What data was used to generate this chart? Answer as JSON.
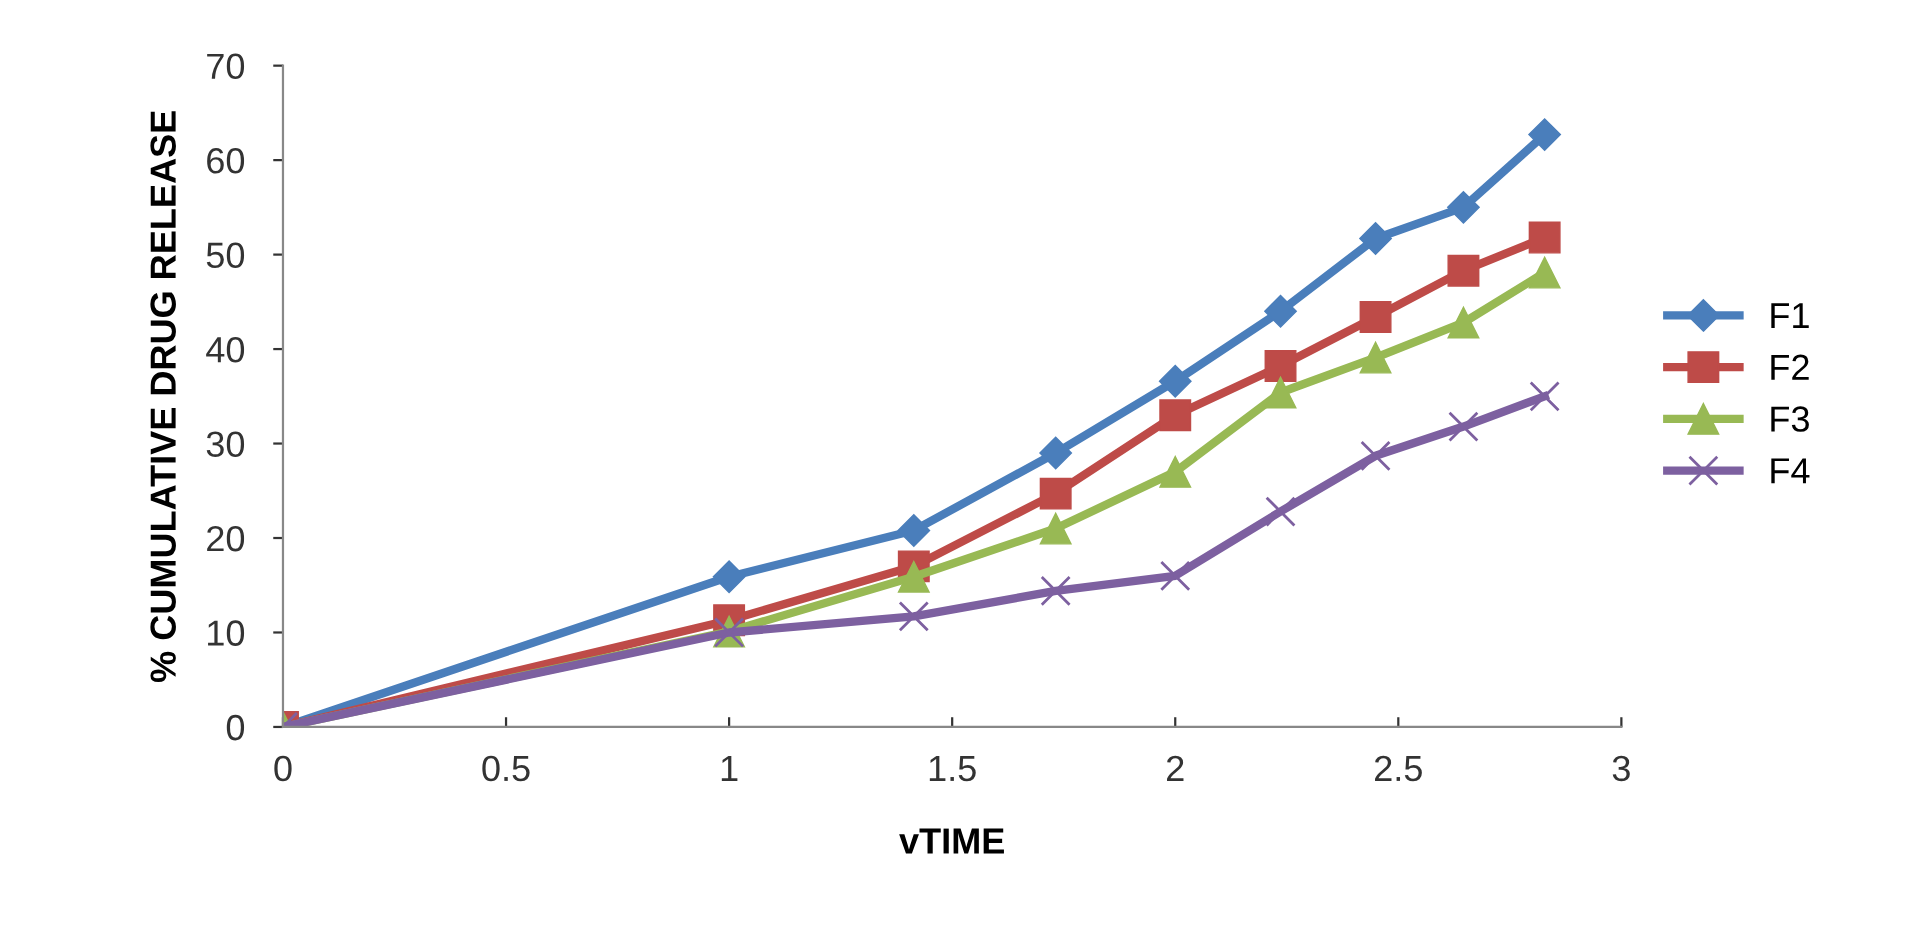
{
  "chart_data": {
    "type": "line",
    "xlabel": "vTIME",
    "ylabel": "% CUMULATIVE DRUG RELEASE",
    "x": [
      0,
      1,
      1.414,
      1.732,
      2,
      2.236,
      2.449,
      2.646,
      2.828
    ],
    "xlim": [
      0,
      3
    ],
    "xticks": [
      0,
      0.5,
      1,
      1.5,
      2,
      2.5,
      3
    ],
    "ylim": [
      0,
      70
    ],
    "yticks": [
      0,
      10,
      20,
      30,
      40,
      50,
      60,
      70
    ],
    "grid": false,
    "legend": "right",
    "line_style": "solid",
    "series": [
      {
        "name": "F1",
        "color": "#4a7ebb",
        "marker": "diamond",
        "values": [
          0,
          15.9,
          20.8,
          29.0,
          36.6,
          44.0,
          51.7,
          55.0,
          62.7
        ]
      },
      {
        "name": "F2",
        "color": "#be4b48",
        "marker": "square",
        "values": [
          0,
          11.3,
          17.0,
          24.7,
          33.0,
          38.2,
          43.4,
          48.3,
          51.8
        ]
      },
      {
        "name": "F3",
        "color": "#98b954",
        "marker": "triangle",
        "values": [
          0,
          10.1,
          15.9,
          21.0,
          27.0,
          35.4,
          39.1,
          42.8,
          48.1
        ]
      },
      {
        "name": "F4",
        "color": "#7d60a0",
        "marker": "cross",
        "values": [
          0,
          10.0,
          11.7,
          14.4,
          16.0,
          22.8,
          28.7,
          31.8,
          35.0
        ]
      }
    ]
  }
}
